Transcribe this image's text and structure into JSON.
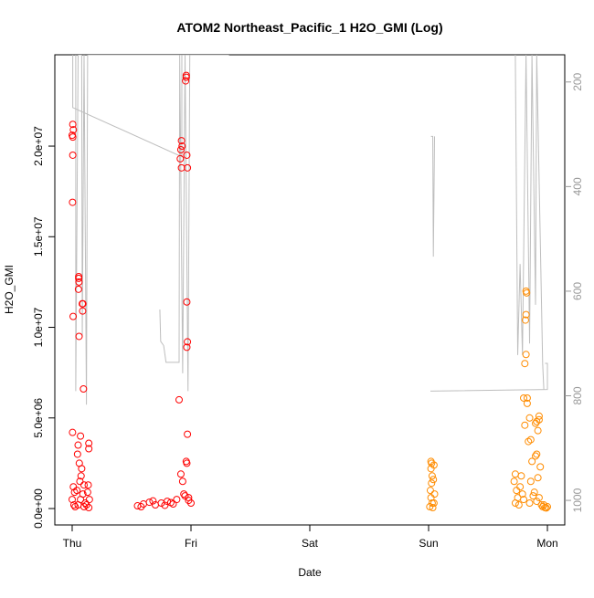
{
  "chart_data": {
    "type": "scatter",
    "title": "ATOM2 Northeast_Pacific_1 H2O_GMI (Log)",
    "x_label": "Date",
    "y_label": "H2O_GMI",
    "xlim": [
      -0.146,
      4.146
    ],
    "xticks": [
      {
        "value": 0,
        "label": "Thu"
      },
      {
        "value": 1,
        "label": "Fri"
      },
      {
        "value": 2,
        "label": "Sat"
      },
      {
        "value": 3,
        "label": "Sun"
      },
      {
        "value": 4,
        "label": "Mon"
      }
    ],
    "ylim": [
      -906000,
      25040000
    ],
    "yticks": [
      {
        "value": 0,
        "label": "0.0e+00"
      },
      {
        "value": 5000000,
        "label": "5.0e+06"
      },
      {
        "value": 10000000,
        "label": "1.0e+07"
      },
      {
        "value": 15000000,
        "label": "1.5e+07"
      },
      {
        "value": 20000000,
        "label": "2.0e+07"
      }
    ],
    "y2lim": [
      1047,
      148
    ],
    "y2ticks": [
      200,
      400,
      600,
      800,
      1000
    ],
    "series": [
      {
        "color": "#ff0000",
        "x": [
          0.005,
          0.01,
          0.0,
          0.005,
          0.005,
          0.003,
          0.008,
          0.003,
          0.01,
          0.02,
          0.0,
          0.015,
          0.025,
          0.055,
          0.055,
          0.057,
          0.053,
          0.058,
          0.05,
          0.045,
          0.06,
          0.065,
          0.04,
          0.07,
          0.05,
          0.085,
          0.09,
          0.088,
          0.095,
          0.07,
          0.08,
          0.075,
          0.1,
          0.09,
          0.11,
          0.1,
          0.14,
          0.14,
          0.135,
          0.13,
          0.145,
          0.12,
          0.14,
          0.55,
          0.6,
          0.65,
          0.7,
          0.75,
          0.8,
          0.85,
          0.88,
          0.95,
          0.98,
          1.0,
          0.58,
          0.68,
          0.78,
          0.83,
          0.92,
          0.925,
          0.915,
          0.91,
          0.92,
          0.9,
          0.915,
          0.93,
          0.94,
          0.96,
          0.96,
          0.955,
          0.965,
          0.97,
          0.965,
          0.97,
          0.965,
          0.97,
          0.96,
          0.965,
          0.98
        ],
        "values": [
          21200000,
          20900000,
          20600000,
          20500000,
          19500000,
          16900000,
          10600000,
          4200000,
          1200000,
          900000,
          500000,
          200000,
          100000,
          12800000,
          12700000,
          12500000,
          12100000,
          9500000,
          3500000,
          3000000,
          2500000,
          1500000,
          1000000,
          500000,
          200000,
          11300000,
          11300000,
          10900000,
          6600000,
          4000000,
          2200000,
          1800000,
          1300000,
          800000,
          300000,
          100000,
          3600000,
          3300000,
          1300000,
          900000,
          500000,
          200000,
          50000,
          150000,
          250000,
          350000,
          200000,
          300000,
          400000,
          250000,
          500000,
          700000,
          450000,
          300000,
          100000,
          420000,
          180000,
          330000,
          20300000,
          20000000,
          19800000,
          19300000,
          18800000,
          6000000,
          1900000,
          1500000,
          800000,
          23900000,
          23800000,
          23600000,
          19500000,
          18800000,
          11400000,
          9200000,
          8900000,
          4100000,
          2600000,
          2500000,
          600000
        ]
      },
      {
        "color": "#ff8c00",
        "x": [
          3.02,
          3.025,
          3.02,
          3.03,
          3.025,
          3.015,
          3.02,
          3.03,
          3.01,
          3.035,
          3.045,
          3.04,
          3.05,
          3.045,
          3.73,
          3.72,
          3.74,
          3.75,
          3.73,
          3.78,
          3.77,
          3.79,
          3.8,
          3.76,
          3.82,
          3.825,
          3.82,
          3.815,
          3.82,
          3.81,
          3.8,
          3.83,
          3.81,
          3.83,
          3.85,
          3.86,
          3.84,
          3.87,
          3.86,
          3.88,
          3.85,
          3.9,
          3.91,
          3.9,
          3.92,
          3.89,
          3.91,
          3.93,
          3.93,
          3.92,
          3.91,
          3.94,
          3.93,
          3.95,
          3.97,
          3.96,
          3.98,
          4.0,
          3.99
        ],
        "values": [
          2600000,
          2500000,
          2200000,
          1800000,
          1400000,
          1000000,
          600000,
          300000,
          100000,
          50000,
          2400000,
          1600000,
          800000,
          300000,
          1900000,
          1500000,
          1000000,
          600000,
          300000,
          1800000,
          1200000,
          800000,
          500000,
          200000,
          12000000,
          11900000,
          10700000,
          10400000,
          8500000,
          8000000,
          6100000,
          5800000,
          4600000,
          6100000,
          5000000,
          3800000,
          3700000,
          2600000,
          1500000,
          700000,
          300000,
          4700000,
          4800000,
          2900000,
          1700000,
          900000,
          400000,
          5100000,
          4900000,
          4300000,
          3000000,
          2300000,
          600000,
          200000,
          200000,
          100000,
          50000,
          100000,
          30000
        ]
      },
      {
        "type": "line",
        "axis": "y2",
        "color": "#bebebe",
        "x": [
          0.005,
          0.005,
          0.923,
          0.923,
          null,
          0.03,
          0.03,
          0.05,
          0.08,
          0.085,
          0.1,
          0.12,
          0.13,
          1.32,
          null,
          0.738,
          0.745,
          0.77,
          0.79,
          0.9,
          0.905,
          0.93,
          0.95,
          0.975,
          0.99,
          null,
          3.02,
          3.035,
          3.04,
          3.05,
          null,
          3.015,
          4.0,
          4.0,
          3.98,
          null,
          3.73,
          3.75,
          3.77,
          3.79,
          3.82,
          3.85,
          3.87,
          3.9,
          3.91,
          3.96,
          3.97
        ],
        "values": [
          148,
          249,
          343,
          148,
          null,
          148,
          791,
          148,
          148,
          687,
          148,
          817,
          148,
          148,
          null,
          635,
          696,
          704,
          736,
          736,
          148,
          757,
          148,
          791,
          148,
          null,
          304,
          304,
          534,
          304,
          null,
          791,
          788,
          738,
          738,
          null,
          148,
          722,
          548,
          722,
          148,
          700,
          148,
          626,
          148,
          739,
          788
        ]
      }
    ]
  }
}
